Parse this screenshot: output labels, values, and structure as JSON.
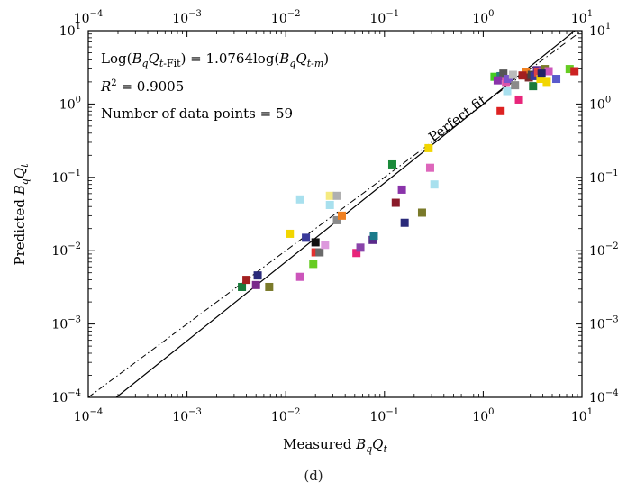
{
  "chart_data": {
    "type": "scatter",
    "xscale": "log",
    "yscale": "log",
    "xlim": [
      0.0001,
      10
    ],
    "ylim": [
      0.0001,
      10
    ],
    "xlabel": {
      "pre": "Measured ",
      "b": "B",
      "sub1": "q",
      "q": "Q",
      "sub2": "t"
    },
    "ylabel": {
      "pre": "Predicted ",
      "b": "B",
      "sub1": "q",
      "q": "Q",
      "sub2": "t"
    },
    "tick_labels": [
      "10",
      "10",
      "10",
      "10",
      "10",
      "10"
    ],
    "tick_exponents": [
      "−4",
      "−3",
      "−2",
      "−1",
      "0",
      "1"
    ],
    "tick_values": [
      0.0001,
      0.001,
      0.01,
      0.1,
      1,
      10
    ],
    "annotations": {
      "equation": {
        "a": "Log(",
        "b": "B",
        "c": "q",
        "d": "Q",
        "e": "t",
        "f": "-Fit",
        "g": ") = 1.0764log(",
        "h": "B",
        "i": "q",
        "j": "Q",
        "k": "t",
        "l": "-m",
        "m": ")"
      },
      "r2": {
        "label": "R",
        "exp": "2",
        "value": " = 0.9005"
      },
      "count": "Number of data points = 59",
      "perfect_fit": "Perfect fit"
    },
    "lines": {
      "fit_slope": 1.0764,
      "perfect_fit_slope": 1
    },
    "points": [
      [
        0.0036,
        0.0032,
        "#1a7a3a"
      ],
      [
        0.004,
        0.004,
        "#a32020"
      ],
      [
        0.005,
        0.0034,
        "#7a2a8a"
      ],
      [
        0.0052,
        0.0046,
        "#2a2a7a"
      ],
      [
        0.0068,
        0.0032,
        "#7a7a2a"
      ],
      [
        0.011,
        0.017,
        "#f2d600"
      ],
      [
        0.014,
        0.0044,
        "#cc55bb"
      ],
      [
        0.014,
        0.05,
        "#a8e0ee"
      ],
      [
        0.016,
        0.015,
        "#3a3a9a"
      ],
      [
        0.019,
        0.0066,
        "#66cc22"
      ],
      [
        0.02,
        0.013,
        "#111111"
      ],
      [
        0.02,
        0.0095,
        "#e33030"
      ],
      [
        0.022,
        0.0095,
        "#6a6a6a"
      ],
      [
        0.025,
        0.012,
        "#dd99dd"
      ],
      [
        0.028,
        0.056,
        "#f5ea80"
      ],
      [
        0.028,
        0.042,
        "#a8e0ee"
      ],
      [
        0.033,
        0.056,
        "#b0b0b0"
      ],
      [
        0.033,
        0.026,
        "#8a8a8a"
      ],
      [
        0.037,
        0.03,
        "#f08020"
      ],
      [
        0.052,
        0.0093,
        "#e8257a"
      ],
      [
        0.057,
        0.011,
        "#8a44aa"
      ],
      [
        0.076,
        0.014,
        "#5a2a8a"
      ],
      [
        0.078,
        0.016,
        "#1a7a8a"
      ],
      [
        0.12,
        0.15,
        "#1a8a3a"
      ],
      [
        0.13,
        0.045,
        "#8a1a2a"
      ],
      [
        0.15,
        0.068,
        "#8a33aa"
      ],
      [
        0.16,
        0.024,
        "#2a2a7a"
      ],
      [
        0.24,
        0.033,
        "#7a7a2a"
      ],
      [
        0.28,
        0.25,
        "#f2d600"
      ],
      [
        0.29,
        0.135,
        "#dd66bb"
      ],
      [
        0.32,
        0.08,
        "#a8e0ee"
      ],
      [
        1.3,
        2.35,
        "#44cc22"
      ],
      [
        1.5,
        2.4,
        "#2a7a7a"
      ],
      [
        1.5,
        0.8,
        "#dd2222"
      ],
      [
        1.6,
        2.6,
        "#555555"
      ],
      [
        1.7,
        2.0,
        "#dd55aa"
      ],
      [
        1.75,
        1.5,
        "#a8e0ee"
      ],
      [
        1.8,
        2.2,
        "#7a55cc"
      ],
      [
        2.0,
        2.5,
        "#bbbbbb"
      ],
      [
        2.1,
        1.8,
        "#8a8a8a"
      ],
      [
        2.3,
        1.15,
        "#e8257a"
      ],
      [
        2.7,
        2.7,
        "#f08020"
      ],
      [
        2.9,
        2.3,
        "#7a2a2a"
      ],
      [
        3.1,
        2.5,
        "#444444"
      ],
      [
        3.2,
        1.75,
        "#1a7a3a"
      ],
      [
        3.3,
        2.4,
        "#3a3a9a"
      ],
      [
        3.5,
        2.9,
        "#5a2a8a"
      ],
      [
        3.6,
        2.7,
        "#dd4444"
      ],
      [
        3.8,
        2.2,
        "#f2d600"
      ],
      [
        4.0,
        2.8,
        "#aa44bb"
      ],
      [
        4.2,
        3.0,
        "#7a7a2a"
      ],
      [
        4.4,
        2.0,
        "#f2d600"
      ],
      [
        4.6,
        2.8,
        "#cc55bb"
      ],
      [
        5.5,
        2.2,
        "#5a5acc"
      ],
      [
        7.5,
        3.0,
        "#66cc22"
      ],
      [
        8.4,
        2.8,
        "#cc2222"
      ],
      [
        3.9,
        2.6,
        "#222266"
      ],
      [
        1.4,
        2.1,
        "#8a33aa"
      ],
      [
        2.5,
        2.45,
        "#a32020"
      ]
    ]
  },
  "caption": "(d)"
}
